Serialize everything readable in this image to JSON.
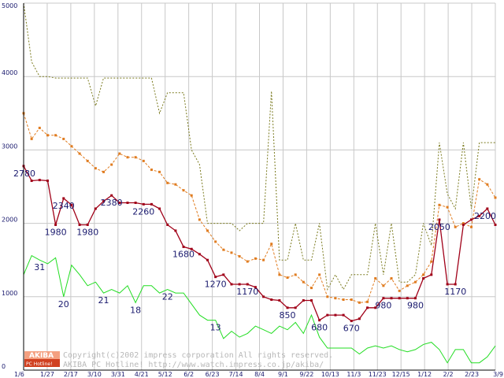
{
  "chart_data": {
    "type": "line",
    "title": "",
    "xlabel": "",
    "ylabel": "",
    "ylim": [
      0,
      5000
    ],
    "y_ticks": [
      0,
      1000,
      2000,
      3000,
      4000,
      5000
    ],
    "grid": true,
    "x_tick_labels": [
      "1/6",
      "1/27",
      "2/17",
      "3/10",
      "3/31",
      "4/21",
      "5/12",
      "6/2",
      "6/23",
      "7/14",
      "8/4",
      "9/1",
      "9/22",
      "10/13",
      "11/3",
      "11/23",
      "12/15",
      "1/12",
      "2/2",
      "2/23",
      "3/9"
    ],
    "series": [
      {
        "values": [
          5000,
          4200,
          4000,
          4000,
          3980,
          3980,
          3980,
          3980,
          3980,
          3600,
          3980,
          3980,
          3980,
          3980,
          3980,
          3980,
          3980,
          3500,
          3780,
          3780,
          3780,
          3000,
          2800,
          2000,
          2000,
          2000,
          2000,
          1900,
          2000,
          2000,
          2000,
          3800,
          1500,
          1500,
          2000,
          1500,
          1500,
          2000,
          1100,
          1300,
          1100,
          1300,
          1300,
          1300,
          2000,
          1300,
          2000,
          1200,
          1200,
          1300,
          2000,
          1700,
          3100,
          2400,
          2200,
          3100,
          2200,
          3100,
          3100,
          3100
        ]
      },
      {
        "values": [
          3500,
          3150,
          3300,
          3200,
          3200,
          3150,
          3050,
          2950,
          2850,
          2750,
          2700,
          2800,
          2950,
          2900,
          2900,
          2850,
          2730,
          2700,
          2550,
          2530,
          2450,
          2380,
          2050,
          1900,
          1750,
          1640,
          1600,
          1550,
          1480,
          1520,
          1500,
          1720,
          1300,
          1260,
          1300,
          1200,
          1120,
          1300,
          1000,
          980,
          960,
          960,
          920,
          930,
          1250,
          1150,
          1250,
          1080,
          1150,
          1200,
          1300,
          1480,
          2250,
          2220,
          1950,
          2000,
          1950,
          2600,
          2530,
          2350
        ]
      },
      {
        "values": [
          2780,
          2580,
          2590,
          2580,
          1980,
          2340,
          2250,
          1980,
          1980,
          2200,
          2300,
          2380,
          2280,
          2280,
          2280,
          2260,
          2260,
          2200,
          1980,
          1900,
          1680,
          1650,
          1580,
          1500,
          1270,
          1300,
          1170,
          1170,
          1170,
          1130,
          1000,
          960,
          950,
          850,
          850,
          950,
          950,
          680,
          750,
          750,
          750,
          670,
          700,
          850,
          850,
          980,
          980,
          980,
          980,
          980,
          1250,
          1300,
          2050,
          1170,
          1170,
          1980,
          2050,
          2100,
          2200,
          1980
        ]
      },
      {
        "values": [
          1300,
          1560,
          1500,
          1450,
          1530,
          1000,
          1430,
          1300,
          1150,
          1200,
          1050,
          1100,
          1050,
          1150,
          920,
          1150,
          1150,
          1050,
          1100,
          1050,
          1050,
          900,
          750,
          680,
          680,
          430,
          530,
          450,
          500,
          600,
          550,
          500,
          600,
          550,
          650,
          500,
          750,
          450,
          300,
          300,
          300,
          300,
          220,
          300,
          330,
          300,
          330,
          280,
          250,
          280,
          350,
          380,
          280,
          100,
          280,
          280,
          100,
          100,
          180,
          330
        ]
      }
    ],
    "data_labels": [
      {
        "series": 2,
        "index": 0,
        "text": "2780",
        "pos": "below"
      },
      {
        "series": 2,
        "index": 4,
        "text": "1980",
        "pos": "below"
      },
      {
        "series": 2,
        "index": 5,
        "text": "2340",
        "pos": "below"
      },
      {
        "series": 2,
        "index": 8,
        "text": "1980",
        "pos": "below"
      },
      {
        "series": 2,
        "index": 11,
        "text": "2380",
        "pos": "below"
      },
      {
        "series": 2,
        "index": 15,
        "text": "2260",
        "pos": "below"
      },
      {
        "series": 2,
        "index": 20,
        "text": "1680",
        "pos": "below"
      },
      {
        "series": 2,
        "index": 24,
        "text": "1270",
        "pos": "below"
      },
      {
        "series": 2,
        "index": 28,
        "text": "1170",
        "pos": "below"
      },
      {
        "series": 2,
        "index": 33,
        "text": "850",
        "pos": "below"
      },
      {
        "series": 2,
        "index": 37,
        "text": "680",
        "pos": "below"
      },
      {
        "series": 2,
        "index": 41,
        "text": "670",
        "pos": "below"
      },
      {
        "series": 2,
        "index": 45,
        "text": "980",
        "pos": "below"
      },
      {
        "series": 2,
        "index": 49,
        "text": "980",
        "pos": "below"
      },
      {
        "series": 2,
        "index": 52,
        "text": "2050",
        "pos": "below"
      },
      {
        "series": 2,
        "index": 54,
        "text": "1170",
        "pos": "below"
      },
      {
        "series": 2,
        "index": 58,
        "text": "2200",
        "pos": "below"
      },
      {
        "series": 3,
        "index": 2,
        "text": "31",
        "pos": "below"
      },
      {
        "series": 3,
        "index": 5,
        "text": "20",
        "pos": "below"
      },
      {
        "series": 3,
        "index": 10,
        "text": "21",
        "pos": "below"
      },
      {
        "series": 3,
        "index": 14,
        "text": "18",
        "pos": "below"
      },
      {
        "series": 3,
        "index": 18,
        "text": "22",
        "pos": "below"
      },
      {
        "series": 3,
        "index": 24,
        "text": "13",
        "pos": "below"
      }
    ],
    "colors": {
      "series": [
        "#7a7a1e",
        "#e07c20",
        "#a00018",
        "#22dd22"
      ],
      "grid": "#c8c8c8",
      "axis": "#000000",
      "label": "#1a1a6e"
    }
  },
  "footer": {
    "logo_top": "AKIBA",
    "logo_bottom": "PC Hotline!",
    "copyright_line1": "Copyright(c)2002 impress corporation All rights reserved.",
    "copyright_line2": "AKIBA PC Hotline! http://www.watch.impress.co.jp/akiba/",
    "colors": {
      "logo_top": "#f4a080",
      "logo_bottom": "#d04020"
    }
  }
}
